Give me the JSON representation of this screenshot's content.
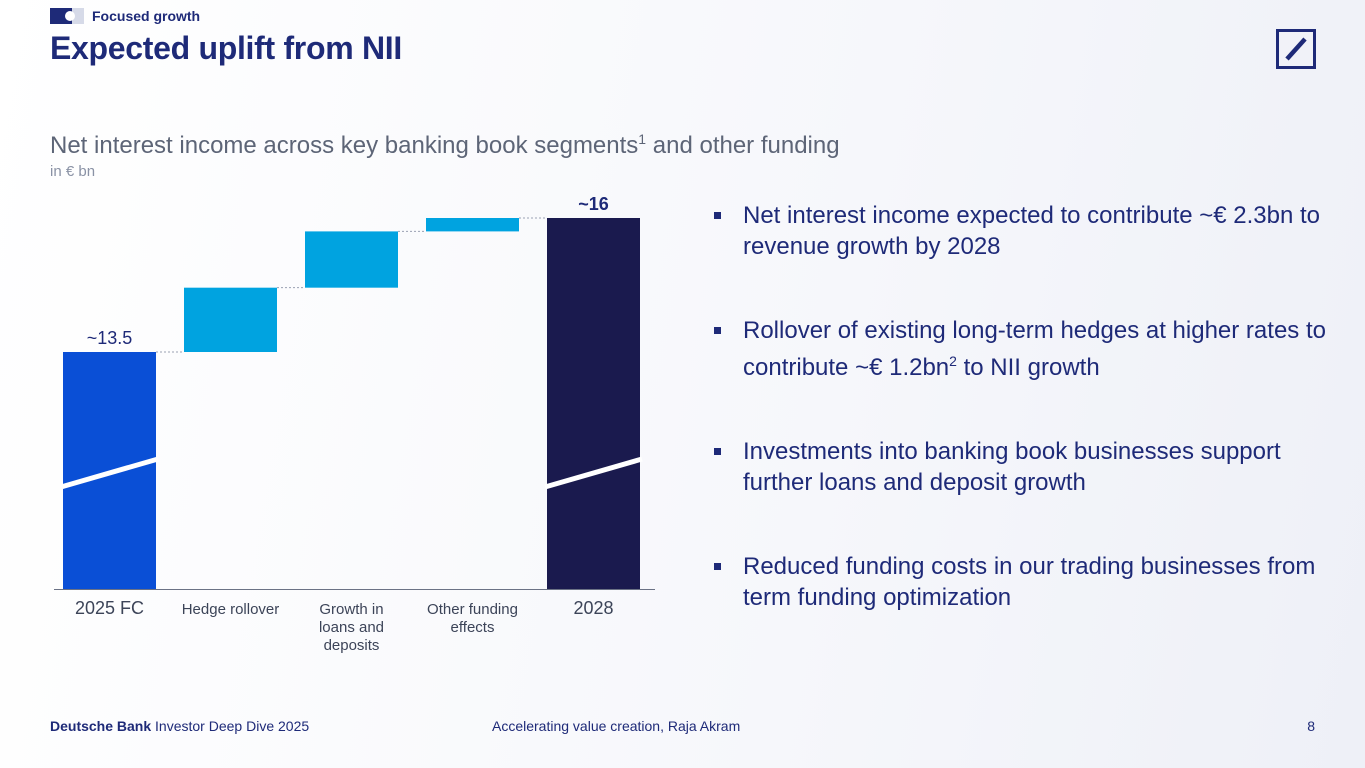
{
  "header": {
    "section_label": "Focused growth",
    "title": "Expected uplift from NII"
  },
  "logo": {
    "name": "deutsche-bank-logo"
  },
  "chart_header": {
    "title_main": "Net interest income across key banking book segments",
    "title_sup": "1",
    "title_end": " and other funding",
    "unit": "in € bn"
  },
  "chart_data": {
    "type": "bar",
    "subtype": "waterfall",
    "title": "Net interest income across key banking book segments1 and other funding",
    "ylabel": "in € bn",
    "axis_break": true,
    "ylim": [
      0,
      16
    ],
    "categories": [
      "2025 FC",
      "Hedge rollover",
      "Growth in loans and deposits",
      "Other funding effects",
      "2028"
    ],
    "category_lines": [
      [
        "2025 FC"
      ],
      [
        "Hedge rollover"
      ],
      [
        "Growth in",
        "loans and",
        "deposits"
      ],
      [
        "Other funding",
        "effects"
      ],
      [
        "2028"
      ]
    ],
    "bars": [
      {
        "kind": "total",
        "start": 0,
        "end": 13.5,
        "label": "~13.5"
      },
      {
        "kind": "delta",
        "start": 13.5,
        "end": 14.7
      },
      {
        "kind": "delta",
        "start": 14.7,
        "end": 15.75
      },
      {
        "kind": "delta",
        "start": 15.75,
        "end": 16.0
      },
      {
        "kind": "total",
        "start": 0,
        "end": 16.0,
        "label": "~16"
      }
    ],
    "colors": {
      "start_total": "#0a4fd6",
      "delta": "#00a3e0",
      "end_total": "#1a1a4e",
      "connector": "#9aa1b3",
      "axis": "#6b7285"
    }
  },
  "bullets": [
    {
      "text": "Net interest income expected to contribute ~€ 2.3bn to revenue growth by 2028"
    },
    {
      "text_a": "Rollover of existing long-term hedges at higher rates to contribute ~€ 1.2bn",
      "sup": "2",
      "text_b": " to NII growth"
    },
    {
      "text": "Investments into banking book businesses support further loans and deposit growth"
    },
    {
      "text": "Reduced funding costs in our trading businesses from term funding optimization"
    }
  ],
  "footer": {
    "brand": "Deutsche Bank",
    "event": " Investor Deep Dive 2025",
    "center": "Accelerating value creation, Raja Akram",
    "page": "8"
  }
}
